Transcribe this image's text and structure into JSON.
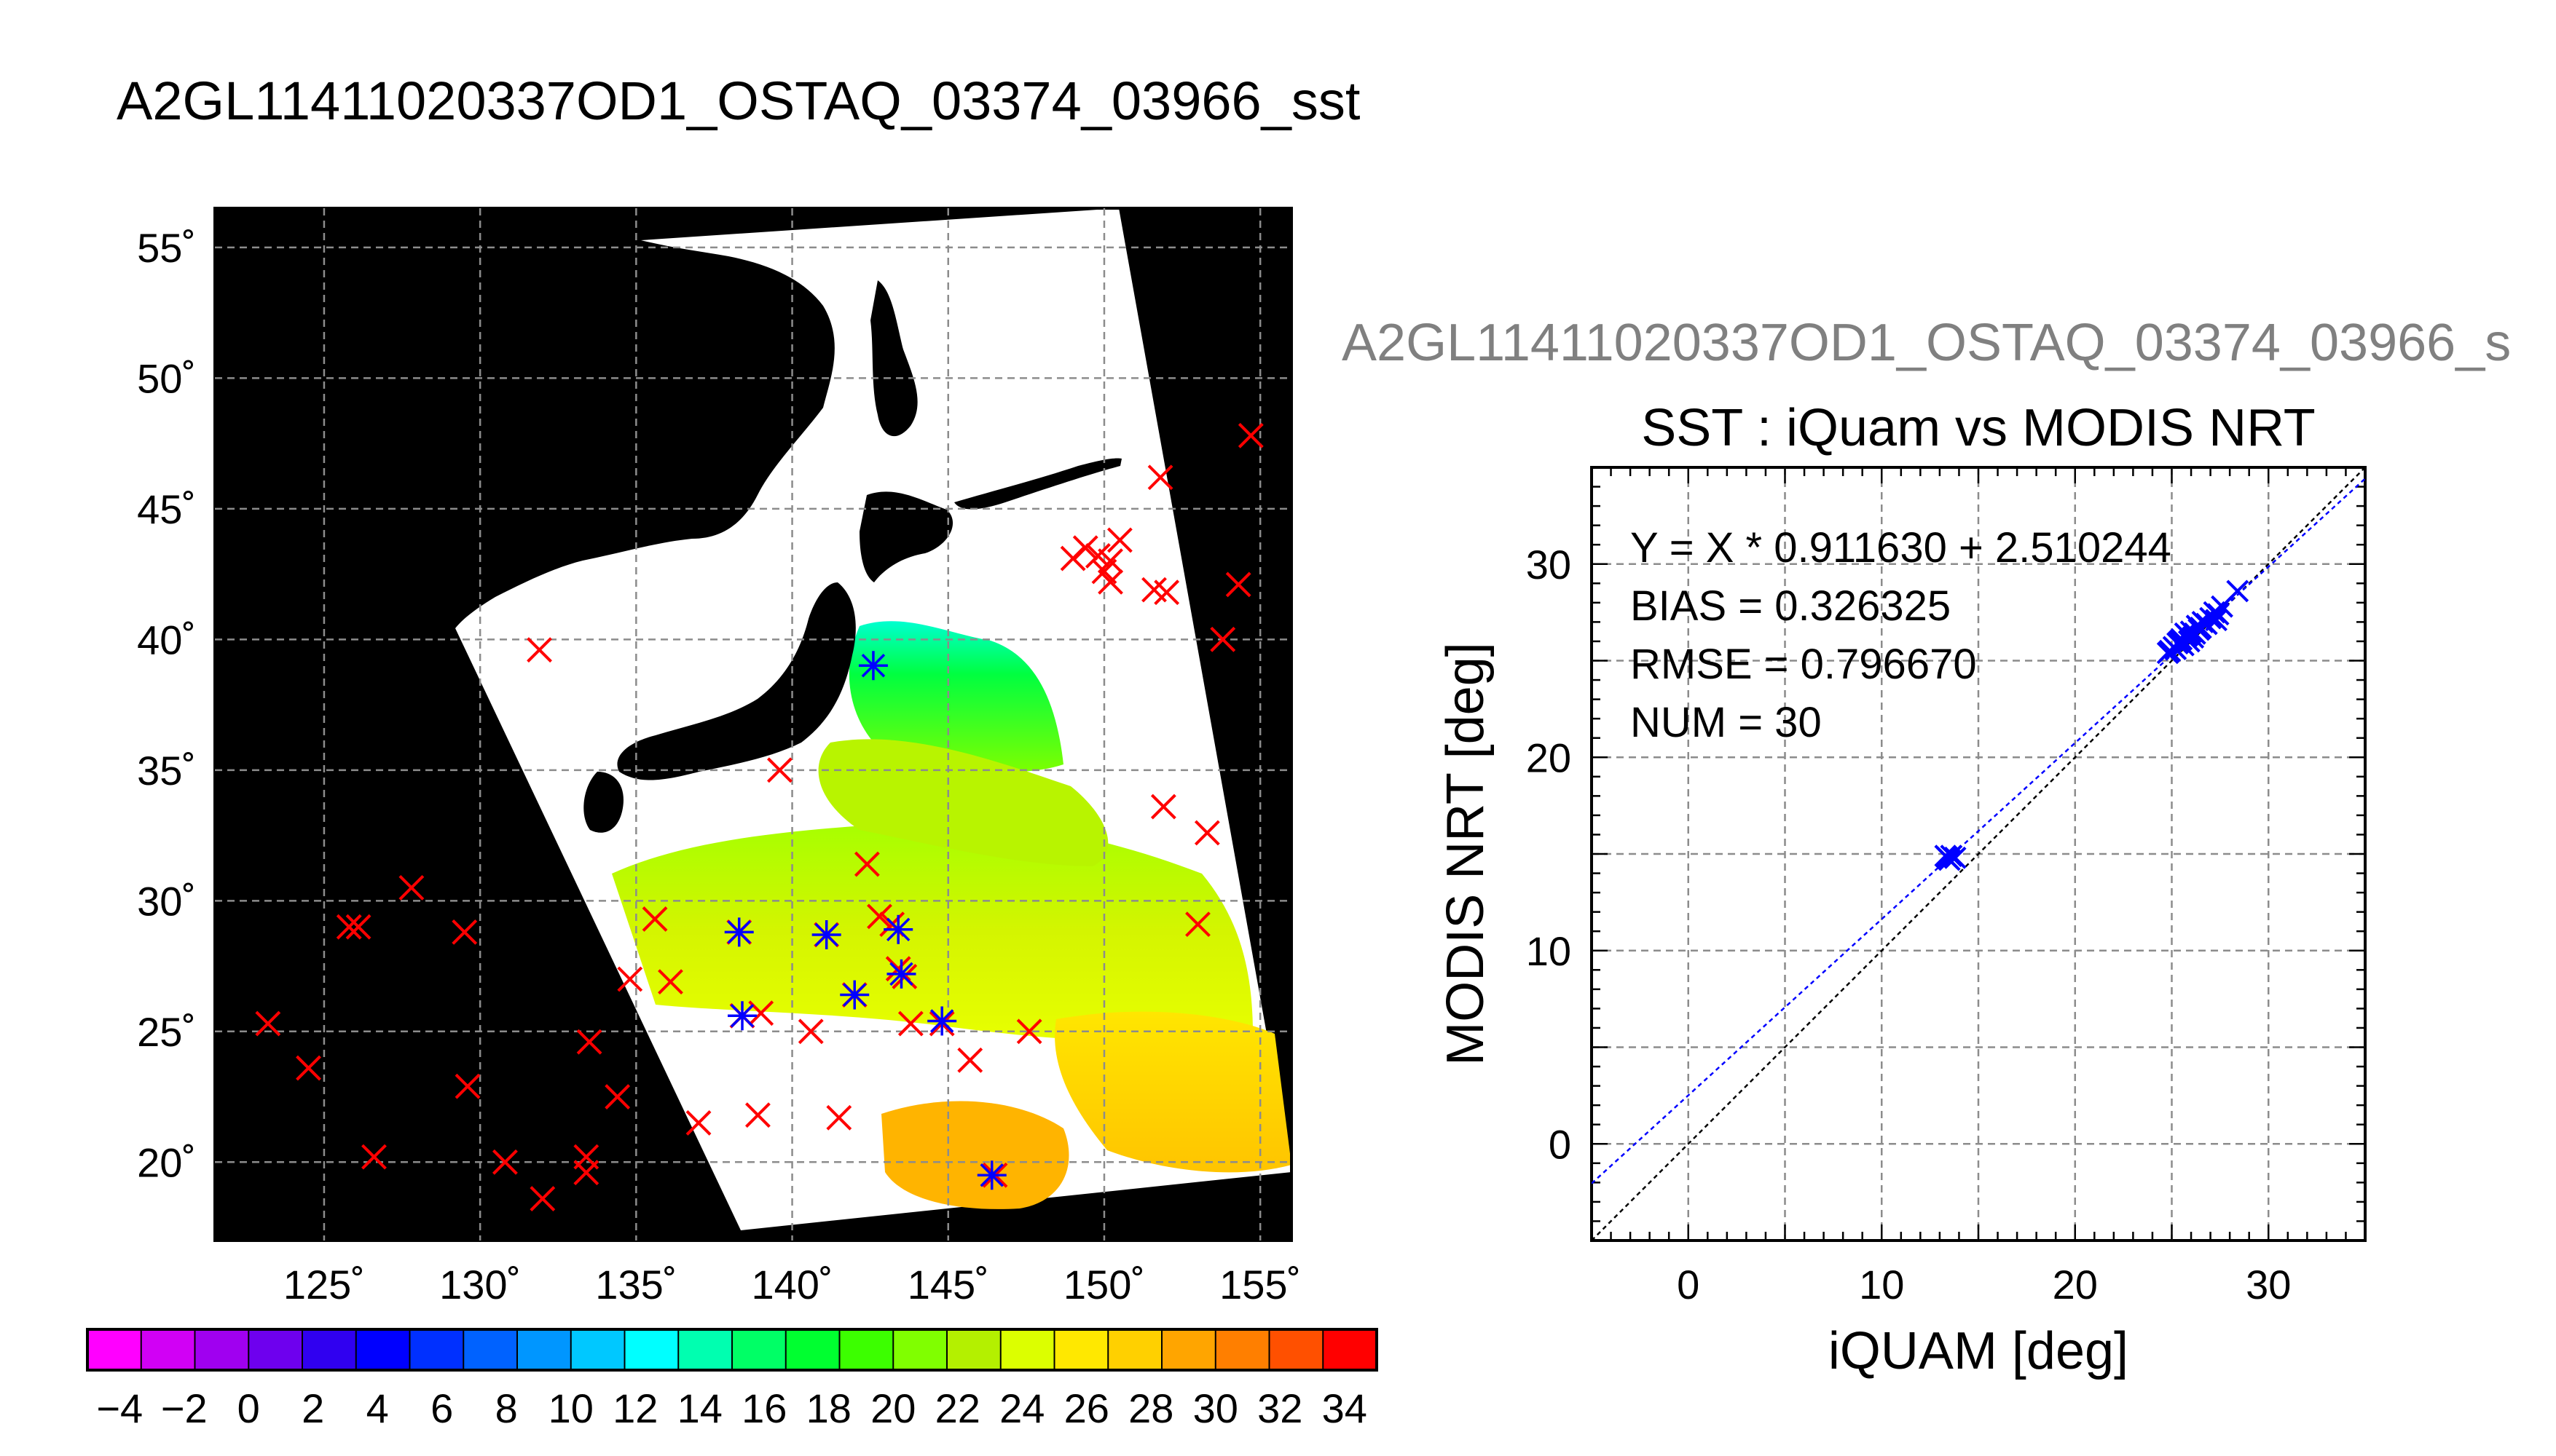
{
  "figure_title": "A2GL11411020337OD1_OSTAQ_03374_03966_sst",
  "scatter_header": "A2GL11411020337OD1_OSTAQ_03374_03966_s",
  "colors": {
    "background": "#ffffff",
    "map_land_and_nodata": "#000000",
    "map_cloud": "#ffffff",
    "grid": "#8c8c8c",
    "insitu_marker": "#ff0000",
    "match_marker": "#0000ff",
    "regression_line": "#0000ff",
    "identity_line": "#000000"
  },
  "chart_data": [
    {
      "type": "map",
      "lon_ticks": [
        "125˚",
        "130˚",
        "135˚",
        "140˚",
        "145˚",
        "150˚",
        "155˚"
      ],
      "lat_ticks": [
        "20˚",
        "25˚",
        "30˚",
        "35˚",
        "40˚",
        "45˚",
        "50˚",
        "55˚"
      ],
      "lon_range": [
        121.5,
        156.0
      ],
      "lat_range": [
        17.0,
        56.5
      ],
      "grid": true,
      "colorbar": {
        "labels": [
          "−4",
          "−2",
          "0",
          "2",
          "4",
          "6",
          "8",
          "10",
          "12",
          "14",
          "16",
          "18",
          "20",
          "22",
          "24",
          "26",
          "28",
          "30",
          "32",
          "34"
        ],
        "range": [
          -5,
          35
        ],
        "colors": [
          "#ff00ff",
          "#d100f5",
          "#a000f0",
          "#6e00ee",
          "#3000f0",
          "#0000ff",
          "#0030ff",
          "#0062ff",
          "#0096ff",
          "#00c8ff",
          "#00ffff",
          "#00ffb0",
          "#00ff66",
          "#00ff30",
          "#3cff00",
          "#80ff00",
          "#b4f000",
          "#dcff00",
          "#ffe800",
          "#ffd000",
          "#ffa500",
          "#ff7f00",
          "#ff5000",
          "#ff0000"
        ]
      },
      "insitu_points": [
        [
          123.2,
          25.3
        ],
        [
          124.5,
          23.6
        ],
        [
          125.8,
          29.0
        ],
        [
          126.1,
          29.0
        ],
        [
          126.6,
          20.2
        ],
        [
          127.8,
          30.5
        ],
        [
          129.5,
          28.8
        ],
        [
          129.6,
          22.9
        ],
        [
          130.8,
          20.0
        ],
        [
          132.0,
          18.6
        ],
        [
          131.9,
          39.6
        ],
        [
          133.5,
          24.6
        ],
        [
          133.4,
          20.2
        ],
        [
          133.4,
          19.6
        ],
        [
          134.4,
          22.5
        ],
        [
          134.8,
          27.0
        ],
        [
          135.6,
          29.3
        ],
        [
          136.1,
          26.9
        ],
        [
          137.0,
          21.5
        ],
        [
          138.3,
          28.8
        ],
        [
          138.4,
          25.6
        ],
        [
          138.9,
          21.8
        ],
        [
          139.0,
          25.7
        ],
        [
          139.6,
          35.0
        ],
        [
          140.6,
          25.0
        ],
        [
          141.1,
          28.7
        ],
        [
          141.5,
          21.7
        ],
        [
          142.0,
          26.4
        ],
        [
          142.4,
          31.4
        ],
        [
          142.8,
          29.4
        ],
        [
          143.2,
          29.1
        ],
        [
          143.4,
          27.4
        ],
        [
          143.6,
          27.1
        ],
        [
          143.8,
          25.3
        ],
        [
          144.8,
          25.3
        ],
        [
          145.7,
          23.9
        ],
        [
          146.5,
          19.5
        ],
        [
          147.6,
          25.0
        ],
        [
          149.0,
          43.1
        ],
        [
          149.4,
          43.5
        ],
        [
          149.8,
          43.2
        ],
        [
          150.0,
          42.6
        ],
        [
          150.2,
          42.2
        ],
        [
          150.5,
          43.8
        ],
        [
          150.2,
          43.0
        ],
        [
          151.6,
          41.9
        ],
        [
          152.0,
          41.8
        ],
        [
          151.8,
          46.2
        ],
        [
          151.9,
          33.6
        ],
        [
          153.0,
          29.1
        ],
        [
          153.3,
          32.6
        ],
        [
          153.8,
          40.0
        ],
        [
          154.3,
          42.1
        ],
        [
          154.7,
          47.8
        ]
      ],
      "matchup_points": [
        [
          138.3,
          28.8
        ],
        [
          138.4,
          25.6
        ],
        [
          141.1,
          28.7
        ],
        [
          142.0,
          26.4
        ],
        [
          142.6,
          39.0
        ],
        [
          143.4,
          28.9
        ],
        [
          143.5,
          27.2
        ],
        [
          144.8,
          25.4
        ],
        [
          146.4,
          19.5
        ]
      ]
    },
    {
      "type": "scatter",
      "title": "SST : iQuam vs MODIS NRT",
      "xlabel": "iQUAM [deg]",
      "ylabel": "MODIS NRT [deg]",
      "xlim": [
        -5,
        35
      ],
      "ylim": [
        -5,
        35
      ],
      "x_ticks": [
        "0",
        "10",
        "20",
        "30"
      ],
      "y_ticks": [
        "0",
        "10",
        "20",
        "30"
      ],
      "grid": true,
      "annotations": [
        "Y = X * 0.911630 + 2.510244",
        "BIAS = 0.326325",
        "RMSE = 0.796670",
        "NUM = 30"
      ],
      "regression": {
        "slope": 0.91163,
        "intercept": 2.510244
      },
      "identity_line": true,
      "points": [
        [
          13.4,
          14.8
        ],
        [
          13.6,
          14.9
        ],
        [
          13.5,
          14.7
        ],
        [
          13.8,
          14.8
        ],
        [
          13.3,
          14.9
        ],
        [
          24.8,
          25.4
        ],
        [
          25.1,
          25.7
        ],
        [
          25.3,
          25.9
        ],
        [
          25.5,
          26.1
        ],
        [
          25.6,
          25.8
        ],
        [
          25.8,
          26.3
        ],
        [
          25.9,
          26.0
        ],
        [
          26.0,
          26.5
        ],
        [
          26.2,
          26.4
        ],
        [
          26.3,
          26.8
        ],
        [
          26.4,
          26.6
        ],
        [
          26.6,
          27.0
        ],
        [
          26.1,
          26.2
        ],
        [
          25.7,
          26.4
        ],
        [
          25.4,
          26.0
        ],
        [
          26.8,
          26.9
        ],
        [
          27.0,
          27.2
        ],
        [
          27.2,
          27.5
        ],
        [
          27.4,
          27.4
        ],
        [
          27.6,
          27.8
        ],
        [
          27.3,
          27.1
        ],
        [
          25.2,
          25.6
        ],
        [
          26.5,
          26.7
        ],
        [
          28.4,
          28.6
        ],
        [
          24.9,
          25.5
        ]
      ]
    }
  ]
}
